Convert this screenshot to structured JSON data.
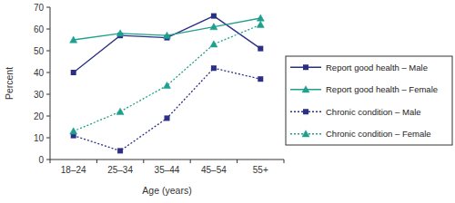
{
  "chart_data": {
    "type": "line",
    "x_label": "Age (years)",
    "y_label": "Percent",
    "categories": [
      "18–24",
      "25–34",
      "35–44",
      "45–54",
      "55+"
    ],
    "ylim": [
      0,
      70
    ],
    "yticks": [
      0,
      10,
      20,
      30,
      40,
      50,
      60,
      70
    ],
    "grid": false,
    "legend": "right",
    "series": [
      {
        "name": "Report good health – Male",
        "color": "#2b2f86",
        "marker": "square",
        "line_style": "solid",
        "values": [
          40,
          57,
          56,
          66,
          51
        ]
      },
      {
        "name": "Report good health – Female",
        "color": "#1fa08e",
        "marker": "triangle",
        "line_style": "solid",
        "values": [
          55,
          58,
          57,
          61,
          65
        ]
      },
      {
        "name": "Chronic condition – Male",
        "color": "#2b2f86",
        "marker": "square",
        "line_style": "dotted",
        "values": [
          11,
          4,
          19,
          42,
          37
        ]
      },
      {
        "name": "Chronic condition – Female",
        "color": "#1fa08e",
        "marker": "triangle",
        "line_style": "dotted",
        "values": [
          13,
          22,
          34,
          53,
          62
        ]
      }
    ]
  }
}
